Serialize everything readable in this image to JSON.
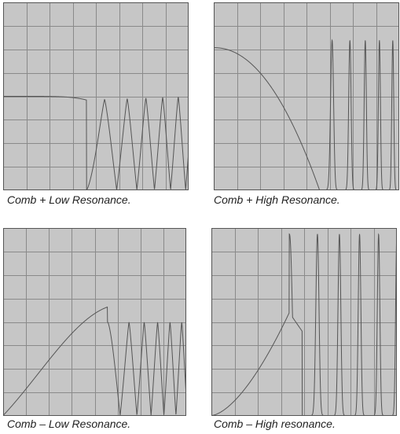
{
  "chart_data": [
    {
      "type": "line",
      "caption": "Comb + Low Resonance.",
      "grid": true,
      "curve": "comb_plus_low"
    },
    {
      "type": "line",
      "caption": "Comb + High Resonance.",
      "grid": true,
      "curve": "comb_plus_high"
    },
    {
      "type": "line",
      "caption": "Comb – Low Resonance.",
      "grid": true,
      "curve": "comb_minus_low"
    },
    {
      "type": "line",
      "caption": "Comb – High resonance.",
      "grid": true,
      "curve": "comb_minus_high"
    }
  ],
  "colors": {
    "plot_background": "#c6c6c6",
    "grid": "#8a8a8a",
    "curve": "#555555"
  }
}
